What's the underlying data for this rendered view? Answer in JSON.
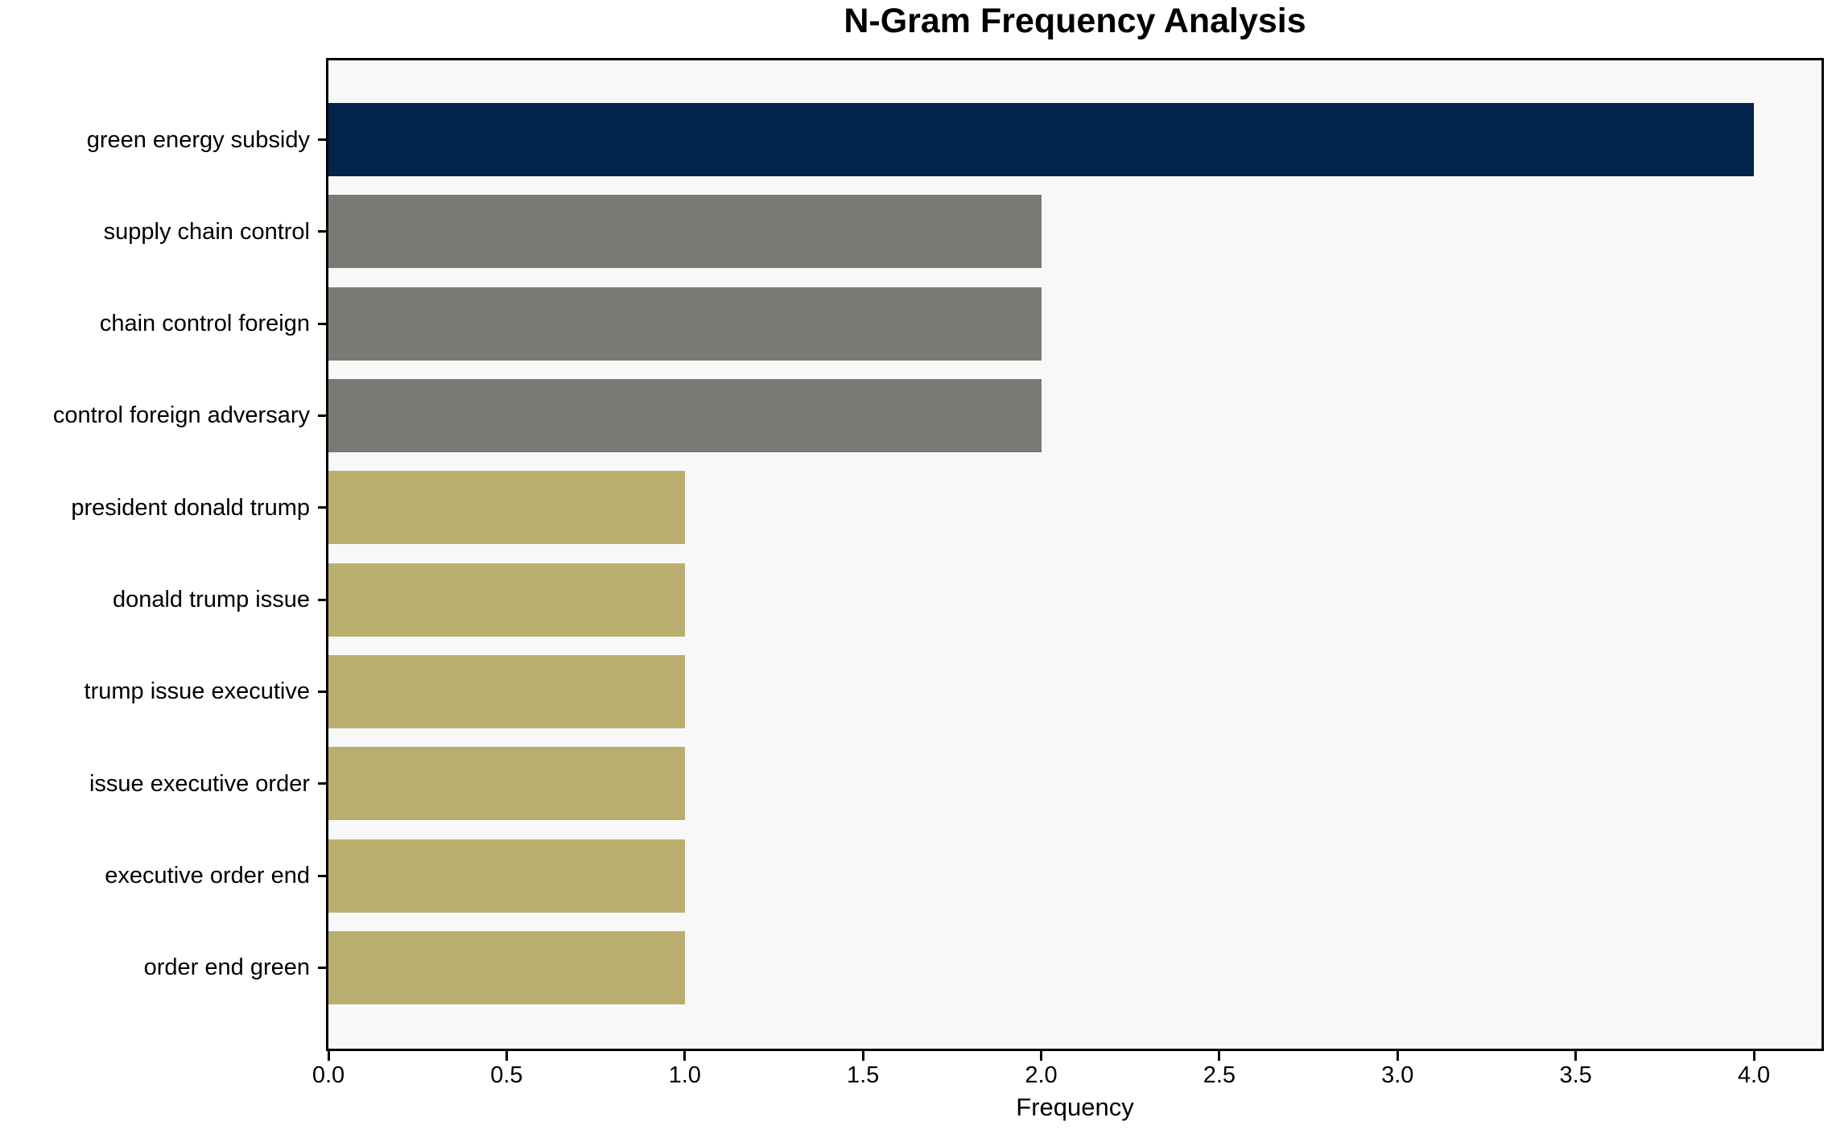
{
  "chart_data": {
    "type": "bar",
    "orientation": "horizontal",
    "title": "N-Gram Frequency Analysis",
    "xlabel": "Frequency",
    "ylabel": "",
    "categories": [
      "green energy subsidy",
      "supply chain control",
      "chain control foreign",
      "control foreign adversary",
      "president donald trump",
      "donald trump issue",
      "trump issue executive",
      "issue executive order",
      "executive order end",
      "order end green"
    ],
    "values": [
      4,
      2,
      2,
      2,
      1,
      1,
      1,
      1,
      1,
      1
    ],
    "bar_colors": [
      "#02234c",
      "#7b7973",
      "#7b7973",
      "#7b7973",
      "#baae6e",
      "#baae6e",
      "#baae6e",
      "#baae6e",
      "#baae6e",
      "#baae6e"
    ],
    "xlim": [
      0,
      4.19
    ],
    "x_ticks": [
      "0.0",
      "0.5",
      "1.0",
      "1.5",
      "2.0",
      "2.5",
      "3.0",
      "3.5",
      "4.0"
    ],
    "x_tick_values": [
      0,
      0.5,
      1,
      1.5,
      2,
      2.5,
      3,
      3.5,
      4
    ],
    "grid": false,
    "legend": null,
    "colors": {
      "plot_background": "#f8f8f8",
      "figure_background": "#ffffff",
      "spine": "#000000",
      "text": "#000000"
    }
  }
}
